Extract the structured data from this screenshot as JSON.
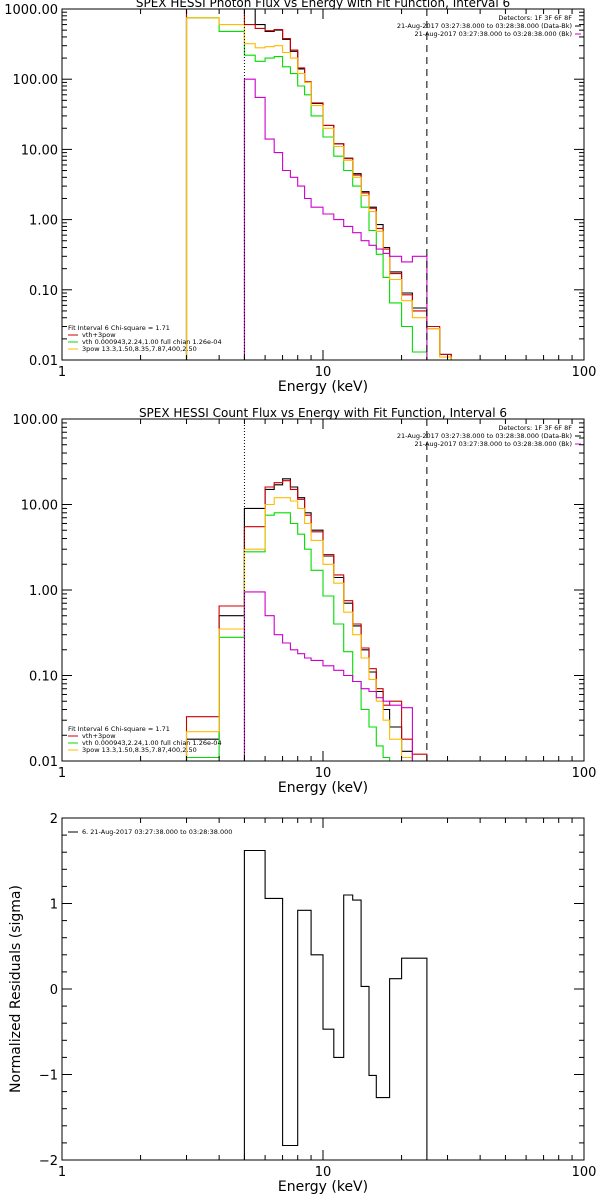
{
  "chart_data": [
    {
      "type": "line",
      "title": "SPEX HESSI Photon Flux vs Energy with Fit Function, Interval 6",
      "xlabel": "Energy (keV)",
      "ylabel": "",
      "xscale": "log",
      "yscale": "log",
      "xlim": [
        1,
        100
      ],
      "ylim": [
        0.01,
        1000
      ],
      "xticks": [
        {
          "v": 1,
          "label": "1"
        },
        {
          "v": 10,
          "label": "10"
        },
        {
          "v": 100,
          "label": "100"
        }
      ],
      "yticks": [
        {
          "v": 0.01,
          "label": "0.01"
        },
        {
          "v": 0.1,
          "label": "0.10"
        },
        {
          "v": 1,
          "label": "1.00"
        },
        {
          "v": 10,
          "label": "10.00"
        },
        {
          "v": 100,
          "label": "100.00"
        },
        {
          "v": 1000,
          "label": "1000.00"
        }
      ],
      "vlines": [
        {
          "x": 5.0,
          "style": "dotted",
          "color": "#000000"
        },
        {
          "x": 25.0,
          "style": "dashed",
          "color": "#000000"
        }
      ],
      "top_right_text": [
        {
          "text": "Detectors: 1F 3F 6F 8F",
          "color": "#000000"
        },
        {
          "text": "21-Aug-2017 03:27:38.000 to 03:28:38.000 (Data-Bk)",
          "color": "#000000"
        },
        {
          "text": "21-Aug-2017 03:27:38.000 to 03:28:38.000 (Bk)",
          "color": "#cc00cc"
        }
      ],
      "legend_title": "Fit Interval 6   Chi-square = 1.71",
      "legend": [
        {
          "label": "vth+3pow",
          "color": "#cc0000"
        },
        {
          "label": "vth 0.000943,2.24,1.00  full chian 1.26e-04",
          "color": "#00dd00"
        },
        {
          "label": "3pow 13.3,1.50,8.35,7.87,400,2.50",
          "color": "#ffbb00"
        }
      ],
      "edges": [
        3,
        4,
        5,
        5.5,
        6,
        6.5,
        7,
        7.5,
        8,
        8.5,
        9,
        10,
        11,
        12,
        13,
        14,
        15,
        16,
        17,
        18,
        20,
        22,
        25,
        28,
        31
      ],
      "series": [
        {
          "name": "data",
          "color": "#000000",
          "values": [
            1000,
            1000,
            1000,
            600,
            480,
            500,
            370,
            250,
            140,
            90,
            45,
            22,
            12,
            7.5,
            4.5,
            2.5,
            1.5,
            0.85,
            0.4,
            0.18,
            0.09,
            0.055,
            0.028,
            0.012
          ]
        },
        {
          "name": "vth+3pow",
          "color": "#cc0000",
          "values": [
            1000,
            1000,
            600,
            530,
            490,
            510,
            380,
            260,
            145,
            92,
            46,
            22,
            12,
            7.4,
            4.3,
            2.4,
            1.45,
            0.75,
            0.38,
            0.17,
            0.085,
            0.05,
            0.03,
            0.012
          ]
        },
        {
          "name": "vth",
          "color": "#00dd00",
          "values": [
            750,
            480,
            220,
            180,
            200,
            210,
            150,
            120,
            80,
            60,
            30,
            15,
            8,
            5,
            3,
            1.5,
            0.7,
            0.32,
            0.15,
            0.065,
            0.03,
            0.013,
            0.01,
            0.01
          ]
        },
        {
          "name": "3pow",
          "color": "#ffbb00",
          "values": [
            750,
            600,
            320,
            280,
            290,
            300,
            240,
            200,
            120,
            90,
            42,
            20,
            11,
            7,
            4,
            2.2,
            1.3,
            0.68,
            0.33,
            0.14,
            0.07,
            0.04,
            0.028,
            0.011
          ]
        },
        {
          "name": "bk",
          "color": "#cc00cc",
          "values": [
            null,
            null,
            100,
            55,
            14,
            9,
            5,
            4,
            3,
            2,
            1.5,
            1.2,
            1.0,
            0.8,
            0.65,
            0.5,
            0.43,
            0.38,
            0.33,
            0.3,
            0.25,
            0.3,
            null,
            null
          ]
        }
      ]
    },
    {
      "type": "line",
      "title": "SPEX HESSI Count Flux vs Energy with Fit Function, Interval 6",
      "xlabel": "Energy (keV)",
      "ylabel": "",
      "xscale": "log",
      "yscale": "log",
      "xlim": [
        1,
        100
      ],
      "ylim": [
        0.01,
        100
      ],
      "xticks": [
        {
          "v": 1,
          "label": "1"
        },
        {
          "v": 10,
          "label": "10"
        },
        {
          "v": 100,
          "label": "100"
        }
      ],
      "yticks": [
        {
          "v": 0.01,
          "label": "0.01"
        },
        {
          "v": 0.1,
          "label": "0.10"
        },
        {
          "v": 1,
          "label": "1.00"
        },
        {
          "v": 10,
          "label": "10.00"
        },
        {
          "v": 100,
          "label": "100.00"
        }
      ],
      "vlines": [
        {
          "x": 5.0,
          "style": "dotted",
          "color": "#000000"
        },
        {
          "x": 25.0,
          "style": "dashed",
          "color": "#000000"
        }
      ],
      "top_right_text": [
        {
          "text": "Detectors: 1F 3F 6F 8F",
          "color": "#000000"
        },
        {
          "text": "21-Aug-2017 03:27:38.000 to 03:28:38.000 (Data-Bk)",
          "color": "#000000"
        },
        {
          "text": "21-Aug-2017 03:27:38.000 to 03:28:38.000 (Bk)",
          "color": "#cc00cc"
        }
      ],
      "legend_title": "Fit Interval 6   Chi-square = 1.71",
      "legend": [
        {
          "label": "vth+3pow",
          "color": "#cc0000"
        },
        {
          "label": "vth 0.000943,2.24,1.00  full chian 1.26e-04",
          "color": "#00dd00"
        },
        {
          "label": "3pow 13.3,1.50,8.35,7.87,400,2.50",
          "color": "#ffbb00"
        }
      ],
      "edges": [
        3,
        4,
        5,
        6,
        6.5,
        7,
        7.5,
        8,
        8.5,
        9,
        10,
        11,
        12,
        13,
        14,
        15,
        16,
        17,
        18,
        20,
        22,
        25
      ],
      "series": [
        {
          "name": "data",
          "color": "#000000",
          "values": [
            0.018,
            0.5,
            9.0,
            15,
            17,
            20,
            16,
            12,
            8,
            5,
            2.5,
            1.4,
            0.7,
            0.38,
            0.2,
            0.11,
            0.065,
            0.04,
            0.025,
            0.013,
            0.009
          ]
        },
        {
          "name": "vth+3pow",
          "color": "#cc0000",
          "values": [
            0.033,
            0.65,
            5.5,
            16,
            18,
            19,
            15,
            11.5,
            7.5,
            4.8,
            2.6,
            1.5,
            0.75,
            0.4,
            0.21,
            0.12,
            0.07,
            0.045,
            0.05,
            0.018,
            0.012
          ]
        },
        {
          "name": "vth",
          "color": "#00dd00",
          "values": [
            0.011,
            0.28,
            2.8,
            7.5,
            8,
            8,
            6,
            4.5,
            3,
            1.7,
            0.85,
            0.4,
            0.19,
            0.085,
            0.04,
            0.025,
            0.015,
            0.011,
            0.01,
            0.01,
            0.01
          ]
        },
        {
          "name": "3pow",
          "color": "#ffbb00",
          "values": [
            0.022,
            0.35,
            3,
            10,
            12,
            12,
            11,
            9,
            6,
            3.8,
            2,
            1.2,
            0.55,
            0.3,
            0.16,
            0.09,
            0.05,
            0.03,
            0.018,
            0.011,
            0.009
          ]
        },
        {
          "name": "bk",
          "color": "#cc00cc",
          "values": [
            null,
            null,
            0.95,
            0.5,
            0.3,
            0.24,
            0.2,
            0.18,
            0.16,
            0.15,
            0.13,
            0.115,
            0.1,
            0.085,
            0.07,
            0.065,
            0.055,
            0.05,
            0.045,
            0.042,
            null
          ]
        }
      ]
    },
    {
      "type": "line",
      "title": "",
      "xlabel": "Energy (keV)",
      "ylabel": "Normalized Residuals (sigma)",
      "xscale": "log",
      "yscale": "linear",
      "xlim": [
        1,
        100
      ],
      "ylim": [
        -2,
        2
      ],
      "xticks": [
        {
          "v": 1,
          "label": "1"
        },
        {
          "v": 10,
          "label": "10"
        },
        {
          "v": 100,
          "label": "100"
        }
      ],
      "yticks": [
        {
          "v": -2,
          "label": "−2"
        },
        {
          "v": -1,
          "label": "−1"
        },
        {
          "v": 0,
          "label": "0"
        },
        {
          "v": 1,
          "label": "1"
        },
        {
          "v": 2,
          "label": "2"
        }
      ],
      "vlines": [],
      "top_right_text": [],
      "legend_title": "",
      "legend": [
        {
          "label": "6. 21-Aug-2017 03:27:38.000 to 03:28:38.000",
          "color": "#000000"
        }
      ],
      "edges": [
        5,
        6,
        7,
        8,
        8.5,
        9,
        10,
        11,
        12,
        13,
        14,
        15,
        16,
        17,
        18,
        20,
        22,
        25
      ],
      "series": [
        {
          "name": "residuals",
          "color": "#000000",
          "values": [
            1.62,
            1.06,
            -1.83,
            0.92,
            0.4,
            -0.47,
            -0.8,
            1.1,
            1.04,
            0.03,
            -1.01,
            -1.27,
            0.12,
            0.36
          ],
          "edges_override": [
            5,
            6,
            7,
            8,
            9,
            10,
            11,
            12,
            13,
            14,
            15,
            16,
            18,
            20,
            25
          ]
        }
      ]
    }
  ]
}
